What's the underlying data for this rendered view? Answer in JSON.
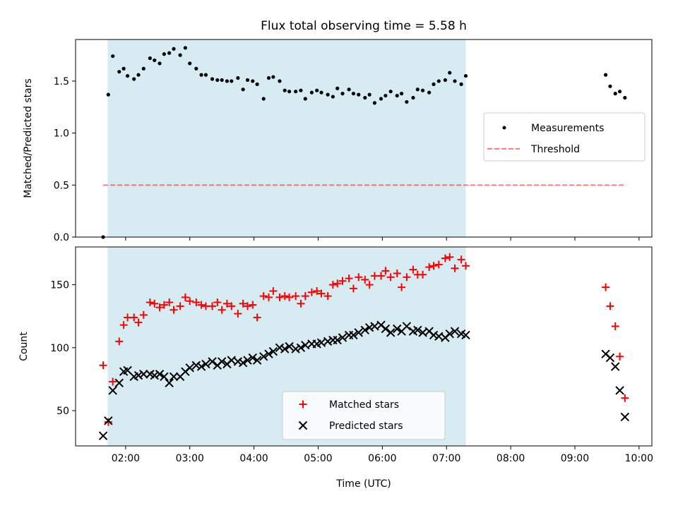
{
  "chart_data": [
    {
      "type": "scatter",
      "title": "Flux total observing time = 5.58 h",
      "ylabel": "Matched/Predicted stars",
      "xlabel": "",
      "xlim": [
        1.22,
        10.2
      ],
      "ylim": [
        0.0,
        1.9
      ],
      "yticks": [
        0.0,
        0.5,
        1.0,
        1.5
      ],
      "ytick_labels": [
        "0.0",
        "0.5",
        "1.0",
        "1.5"
      ],
      "xticks": [
        2,
        3,
        4,
        5,
        6,
        7,
        8,
        9,
        10
      ],
      "shaded_region": {
        "x": [
          1.72,
          7.3
        ],
        "color": "#add8e6"
      },
      "legend": {
        "position": "center-right",
        "entries": [
          "Measurements",
          "Threshold"
        ]
      },
      "threshold": {
        "name": "Threshold",
        "value": 0.5,
        "x": [
          1.65,
          9.8
        ],
        "color": "#ff0000"
      },
      "series": [
        {
          "name": "Measurements",
          "marker": "dot",
          "color": "#000000",
          "x": [
            1.65,
            1.73,
            1.8,
            1.9,
            1.97,
            2.03,
            2.13,
            2.2,
            2.28,
            2.38,
            2.45,
            2.53,
            2.6,
            2.68,
            2.75,
            2.85,
            2.93,
            3.0,
            3.1,
            3.18,
            3.25,
            3.35,
            3.43,
            3.5,
            3.58,
            3.65,
            3.75,
            3.83,
            3.9,
            3.98,
            4.05,
            4.15,
            4.23,
            4.3,
            4.4,
            4.48,
            4.55,
            4.65,
            4.73,
            4.8,
            4.9,
            4.98,
            5.05,
            5.15,
            5.23,
            5.3,
            5.38,
            5.48,
            5.55,
            5.63,
            5.73,
            5.8,
            5.88,
            5.98,
            6.05,
            6.13,
            6.23,
            6.3,
            6.38,
            6.48,
            6.55,
            6.63,
            6.73,
            6.8,
            6.88,
            6.98,
            7.05,
            7.13,
            7.23,
            7.3,
            9.48,
            9.55,
            9.63,
            9.7,
            9.78
          ],
          "y": [
            0.0,
            1.37,
            1.74,
            1.59,
            1.62,
            1.55,
            1.52,
            1.56,
            1.62,
            1.72,
            1.7,
            1.67,
            1.76,
            1.77,
            1.81,
            1.75,
            1.82,
            1.67,
            1.62,
            1.56,
            1.56,
            1.52,
            1.51,
            1.51,
            1.5,
            1.5,
            1.53,
            1.42,
            1.51,
            1.5,
            1.47,
            1.33,
            1.53,
            1.54,
            1.5,
            1.41,
            1.4,
            1.4,
            1.41,
            1.33,
            1.39,
            1.41,
            1.39,
            1.37,
            1.35,
            1.43,
            1.38,
            1.42,
            1.38,
            1.37,
            1.34,
            1.37,
            1.29,
            1.33,
            1.36,
            1.4,
            1.36,
            1.38,
            1.3,
            1.34,
            1.42,
            1.41,
            1.39,
            1.47,
            1.5,
            1.51,
            1.58,
            1.5,
            1.47,
            1.55,
            1.56,
            1.45,
            1.38,
            1.4,
            1.34
          ]
        }
      ]
    },
    {
      "type": "scatter",
      "title": "",
      "ylabel": "Count",
      "xlabel": "Time (UTC)",
      "xlim": [
        1.22,
        10.2
      ],
      "ylim": [
        22,
        180
      ],
      "yticks": [
        50,
        100,
        150
      ],
      "xticks": [
        2,
        3,
        4,
        5,
        6,
        7,
        8,
        9,
        10
      ],
      "xtick_labels": [
        "02:00",
        "03:00",
        "04:00",
        "05:00",
        "06:00",
        "07:00",
        "08:00",
        "09:00",
        "10:00"
      ],
      "shaded_region": {
        "x": [
          1.72,
          7.3
        ],
        "color": "#add8e6"
      },
      "legend": {
        "position": "bottom-center",
        "entries": [
          "Matched stars",
          "Predicted stars"
        ]
      },
      "series": [
        {
          "name": "Matched stars",
          "marker": "plus",
          "color": "#ff0000",
          "x": [
            1.65,
            1.73,
            1.8,
            1.9,
            1.97,
            2.03,
            2.13,
            2.2,
            2.28,
            2.38,
            2.45,
            2.53,
            2.6,
            2.68,
            2.75,
            2.85,
            2.93,
            3.0,
            3.1,
            3.18,
            3.25,
            3.35,
            3.43,
            3.5,
            3.58,
            3.65,
            3.75,
            3.83,
            3.9,
            3.98,
            4.05,
            4.15,
            4.23,
            4.3,
            4.4,
            4.48,
            4.55,
            4.65,
            4.73,
            4.8,
            4.9,
            4.98,
            5.05,
            5.15,
            5.23,
            5.3,
            5.38,
            5.48,
            5.55,
            5.63,
            5.73,
            5.8,
            5.88,
            5.98,
            6.05,
            6.13,
            6.23,
            6.3,
            6.38,
            6.48,
            6.55,
            6.63,
            6.73,
            6.8,
            6.88,
            6.98,
            7.05,
            7.13,
            7.23,
            7.3,
            9.48,
            9.55,
            9.63,
            9.7,
            9.78
          ],
          "y": [
            86,
            41,
            73,
            105,
            118,
            124,
            124,
            120,
            126,
            136,
            135,
            132,
            134,
            136,
            130,
            133,
            140,
            137,
            136,
            134,
            133,
            133,
            136,
            130,
            135,
            133,
            127,
            135,
            133,
            134,
            124,
            141,
            140,
            145,
            140,
            141,
            140,
            141,
            135,
            141,
            144,
            145,
            143,
            141,
            150,
            151,
            153,
            155,
            147,
            156,
            154,
            150,
            157,
            157,
            161,
            156,
            159,
            148,
            156,
            162,
            158,
            158,
            164,
            165,
            166,
            171,
            172,
            163,
            170,
            165,
            148,
            133,
            117,
            93,
            60
          ]
        },
        {
          "name": "Predicted stars",
          "marker": "x",
          "color": "#000000",
          "x": [
            1.65,
            1.73,
            1.8,
            1.9,
            1.97,
            2.03,
            2.13,
            2.2,
            2.28,
            2.38,
            2.45,
            2.53,
            2.6,
            2.68,
            2.75,
            2.85,
            2.93,
            3.0,
            3.1,
            3.18,
            3.25,
            3.35,
            3.43,
            3.5,
            3.58,
            3.65,
            3.75,
            3.83,
            3.9,
            3.98,
            4.05,
            4.15,
            4.23,
            4.3,
            4.4,
            4.48,
            4.55,
            4.65,
            4.73,
            4.8,
            4.9,
            4.98,
            5.05,
            5.15,
            5.23,
            5.3,
            5.38,
            5.48,
            5.55,
            5.63,
            5.73,
            5.8,
            5.88,
            5.98,
            6.05,
            6.13,
            6.23,
            6.3,
            6.38,
            6.48,
            6.55,
            6.63,
            6.73,
            6.8,
            6.88,
            6.98,
            7.05,
            7.13,
            7.23,
            7.3,
            9.48,
            9.55,
            9.63,
            9.7,
            9.78
          ],
          "y": [
            30,
            42,
            66,
            72,
            81,
            82,
            77,
            78,
            79,
            79,
            78,
            79,
            77,
            72,
            77,
            77,
            81,
            84,
            86,
            85,
            87,
            89,
            86,
            89,
            87,
            90,
            89,
            88,
            90,
            92,
            90,
            93,
            95,
            97,
            100,
            99,
            101,
            99,
            100,
            102,
            103,
            103,
            104,
            105,
            106,
            106,
            108,
            110,
            110,
            112,
            114,
            116,
            117,
            118,
            115,
            112,
            115,
            113,
            117,
            113,
            114,
            112,
            113,
            110,
            109,
            108,
            111,
            113,
            111,
            110,
            95,
            92,
            85,
            66,
            45
          ]
        }
      ]
    }
  ]
}
